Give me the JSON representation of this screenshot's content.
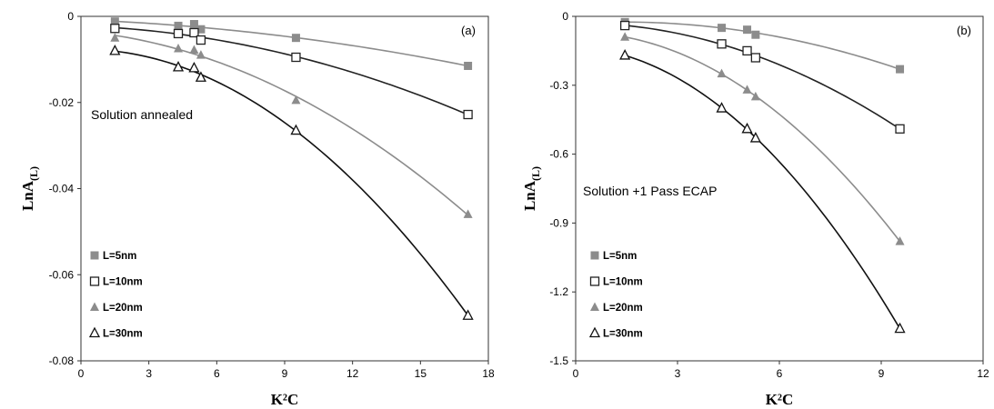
{
  "chart_data": [
    {
      "type": "scatter",
      "panel_label": "(a)",
      "annotation": "Solution annealed",
      "xlabel": "K²C",
      "ylabel_main": "LnA",
      "ylabel_sub": "(L)",
      "xlim": [
        0,
        18
      ],
      "ylim": [
        -0.08,
        0
      ],
      "xticks": [
        "0",
        "3",
        "6",
        "9",
        "12",
        "15",
        "18"
      ],
      "yticks": [
        "0",
        "-0.02",
        "-0.04",
        "-0.06",
        "-0.08"
      ],
      "legend_position": "lower-left",
      "series": [
        {
          "name": "L=5nm",
          "marker": "filled-square",
          "color": "#8c8c8c",
          "x": [
            1.5,
            4.3,
            5.0,
            5.3,
            9.5,
            17.1
          ],
          "y": [
            -0.0012,
            -0.0022,
            -0.0018,
            -0.003,
            -0.005,
            -0.0115
          ]
        },
        {
          "name": "L=10nm",
          "marker": "open-square",
          "color": "#222222",
          "x": [
            1.5,
            4.3,
            5.0,
            5.3,
            9.5,
            17.1
          ],
          "y": [
            -0.0028,
            -0.004,
            -0.0038,
            -0.0055,
            -0.0095,
            -0.0228
          ]
        },
        {
          "name": "L=20nm",
          "marker": "filled-triangle",
          "color": "#8c8c8c",
          "x": [
            1.5,
            4.3,
            5.0,
            5.3,
            9.5,
            17.1
          ],
          "y": [
            -0.005,
            -0.0075,
            -0.0078,
            -0.009,
            -0.0195,
            -0.046
          ]
        },
        {
          "name": "L=30nm",
          "marker": "open-triangle",
          "color": "#111111",
          "x": [
            1.5,
            4.3,
            5.0,
            5.3,
            9.5,
            17.1
          ],
          "y": [
            -0.008,
            -0.0118,
            -0.012,
            -0.0142,
            -0.0265,
            -0.0695
          ]
        }
      ]
    },
    {
      "type": "scatter",
      "panel_label": "(b)",
      "annotation": "Solution +1 Pass ECAP",
      "xlabel": "K²C",
      "ylabel_main": "LnA",
      "ylabel_sub": "(L)",
      "xlim": [
        0,
        12
      ],
      "ylim": [
        -1.5,
        0
      ],
      "xticks": [
        "0",
        "3",
        "6",
        "9",
        "12"
      ],
      "yticks": [
        "0",
        "-0.3",
        "-0.6",
        "-0.9",
        "-1.2",
        "-1.5"
      ],
      "legend_position": "lower-left",
      "series": [
        {
          "name": "L=5nm",
          "marker": "filled-square",
          "color": "#8c8c8c",
          "x": [
            1.45,
            4.3,
            5.05,
            5.3,
            9.55
          ],
          "y": [
            -0.025,
            -0.05,
            -0.058,
            -0.08,
            -0.23
          ]
        },
        {
          "name": "L=10nm",
          "marker": "open-square",
          "color": "#222222",
          "x": [
            1.45,
            4.3,
            5.05,
            5.3,
            9.55
          ],
          "y": [
            -0.04,
            -0.12,
            -0.15,
            -0.18,
            -0.49
          ]
        },
        {
          "name": "L=20nm",
          "marker": "filled-triangle",
          "color": "#8c8c8c",
          "x": [
            1.45,
            4.3,
            5.05,
            5.3,
            9.55
          ],
          "y": [
            -0.09,
            -0.25,
            -0.32,
            -0.35,
            -0.98
          ]
        },
        {
          "name": "L=30nm",
          "marker": "open-triangle",
          "color": "#111111",
          "x": [
            1.45,
            4.3,
            5.05,
            5.3,
            9.55
          ],
          "y": [
            -0.17,
            -0.4,
            -0.49,
            -0.53,
            -1.36
          ]
        }
      ]
    }
  ]
}
